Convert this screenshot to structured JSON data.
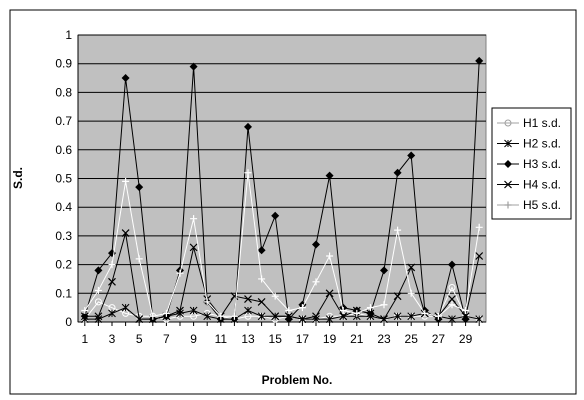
{
  "chart_data": {
    "type": "line",
    "title": "",
    "xlabel": "Problem No.",
    "ylabel": "S.d.",
    "ylim": [
      0,
      1
    ],
    "yticks": [
      "0",
      "0.1",
      "0.2",
      "0.3",
      "0.4",
      "0.5",
      "0.6",
      "0.7",
      "0.8",
      "0.9",
      "1"
    ],
    "xticks": [
      "1",
      "3",
      "5",
      "7",
      "9",
      "11",
      "13",
      "15",
      "17",
      "19",
      "21",
      "23",
      "25",
      "27",
      "29"
    ],
    "x": [
      1,
      2,
      3,
      4,
      5,
      6,
      7,
      8,
      9,
      10,
      11,
      12,
      13,
      14,
      15,
      16,
      17,
      18,
      19,
      20,
      21,
      22,
      23,
      24,
      25,
      26,
      27,
      28,
      29,
      30
    ],
    "grid": "horizontal",
    "plot_background": "#c0c0c0",
    "legend_position": "right",
    "series": [
      {
        "name": "H1 s.d.",
        "marker": "circle-open",
        "color": "#ffffff",
        "values": [
          0.01,
          0.07,
          0.05,
          0.03,
          0.02,
          0.02,
          0.01,
          0.02,
          0.02,
          0.03,
          0.02,
          0.01,
          0.02,
          0.02,
          0.01,
          0.02,
          0.01,
          0.01,
          0.02,
          0.02,
          0.03,
          0.02,
          0.01,
          0.02,
          0.02,
          0.02,
          0.02,
          0.12,
          0.02,
          0.01
        ]
      },
      {
        "name": "H2 s.d.",
        "marker": "star",
        "color": "#000000",
        "values": [
          0.01,
          0.01,
          0.03,
          0.05,
          0.01,
          0.01,
          0.02,
          0.03,
          0.04,
          0.02,
          0.01,
          0.01,
          0.04,
          0.02,
          0.02,
          0.02,
          0.01,
          0.01,
          0.01,
          0.02,
          0.02,
          0.02,
          0.01,
          0.02,
          0.02,
          0.03,
          0.02,
          0.01,
          0.02,
          0.01
        ]
      },
      {
        "name": "H3 s.d.",
        "marker": "diamond",
        "color": "#000000",
        "values": [
          0.02,
          0.18,
          0.24,
          0.85,
          0.47,
          0.01,
          0.02,
          0.18,
          0.89,
          0.07,
          0.01,
          0.01,
          0.68,
          0.25,
          0.37,
          0.01,
          0.06,
          0.27,
          0.51,
          0.05,
          0.04,
          0.03,
          0.18,
          0.52,
          0.58,
          0.04,
          0.01,
          0.2,
          0.01,
          0.91
        ]
      },
      {
        "name": "H4 s.d.",
        "marker": "x",
        "color": "#000000",
        "values": [
          0.02,
          0.02,
          0.14,
          0.31,
          0.01,
          0.01,
          0.02,
          0.04,
          0.26,
          0.08,
          0.02,
          0.09,
          0.08,
          0.07,
          0.02,
          0.02,
          0.01,
          0.02,
          0.1,
          0.02,
          0.04,
          0.03,
          0.01,
          0.09,
          0.19,
          0.03,
          0.02,
          0.08,
          0.02,
          0.23
        ]
      },
      {
        "name": "H5 s.d.",
        "marker": "plus",
        "color": "#ffffff",
        "values": [
          0.04,
          0.11,
          0.2,
          0.49,
          0.22,
          0.02,
          0.03,
          0.17,
          0.36,
          0.07,
          0.02,
          0.02,
          0.52,
          0.15,
          0.09,
          0.04,
          0.05,
          0.14,
          0.23,
          0.04,
          0.03,
          0.05,
          0.06,
          0.32,
          0.1,
          0.03,
          0.02,
          0.06,
          0.04,
          0.33
        ]
      }
    ]
  }
}
